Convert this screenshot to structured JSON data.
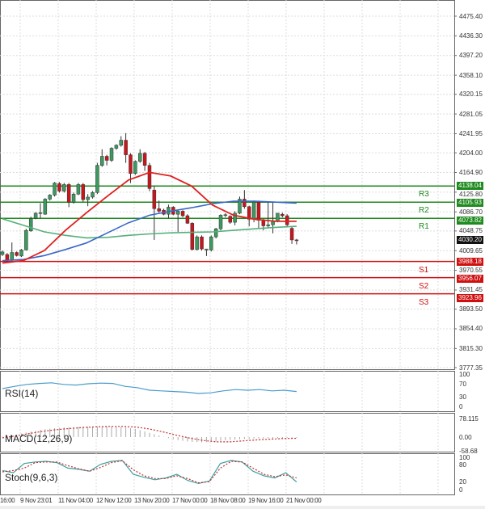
{
  "colors": {
    "bull": "#3c9a5f",
    "bear": "#c8161d",
    "resistance": "#1f8a1f",
    "support": "#d01010",
    "ma_fast": "#e02020",
    "ma_mid": "#3a68c8",
    "ma_slow": "#55b07a",
    "rsi": "#4a9ccc",
    "macd_hist": "#aaaaaa",
    "macd_signal": "#c03030",
    "stoch_main": "#3fa0a0",
    "stoch_signal": "#c03030",
    "current": "#111111"
  },
  "price_axis": {
    "range": [
      3777.35,
      4475.4
    ],
    "ticks": [
      "4475.40",
      "4436.30",
      "4397.20",
      "4358.10",
      "4320.15",
      "4281.05",
      "4241.95",
      "4204.00",
      "4164.90",
      "4125.80",
      "4086.70",
      "4048.75",
      "4009.65",
      "3970.55",
      "3931.45",
      "3893.50",
      "3854.40",
      "3815.30",
      "3777.35"
    ]
  },
  "current_price": "4030.20",
  "levels": [
    {
      "name": "R3",
      "value": "4138.04",
      "kind": "resistance"
    },
    {
      "name": "R2",
      "value": "4105.93",
      "kind": "resistance"
    },
    {
      "name": "R1",
      "value": "4073.82",
      "kind": "resistance"
    },
    {
      "name": "S1",
      "value": "3988.18",
      "kind": "support"
    },
    {
      "name": "S2",
      "value": "3956.07",
      "kind": "support"
    },
    {
      "name": "S3",
      "value": "3923.96",
      "kind": "support"
    }
  ],
  "time_labels": [
    "16:00",
    "9 Nov 23:01",
    "11 Nov 04:00",
    "12 Nov 12:00",
    "13 Nov 20:00",
    "17 Nov 00:00",
    "18 Nov 08:00",
    "19 Nov 16:00",
    "21 Nov 00:00"
  ],
  "candles": [
    [
      4002,
      4010,
      3999,
      4007
    ],
    [
      4002,
      4005,
      3988,
      3991
    ],
    [
      3991,
      4026,
      3988,
      4006
    ],
    [
      4006,
      4008,
      3998,
      4000
    ],
    [
      3999,
      4013,
      3997,
      4011
    ],
    [
      4011,
      4053,
      4010,
      4050
    ],
    [
      4049,
      4077,
      4047,
      4073
    ],
    [
      4074,
      4086,
      4072,
      4084
    ],
    [
      4084,
      4104,
      4074,
      4085
    ],
    [
      4082,
      4114,
      4081,
      4112
    ],
    [
      4112,
      4122,
      4109,
      4120
    ],
    [
      4120,
      4146,
      4117,
      4144
    ],
    [
      4143,
      4146,
      4125,
      4128
    ],
    [
      4128,
      4144,
      4125,
      4141
    ],
    [
      4141,
      4144,
      4096,
      4106
    ],
    [
      4106,
      4125,
      4103,
      4122
    ],
    [
      4122,
      4144,
      4120,
      4141
    ],
    [
      4141,
      4144,
      4107,
      4111
    ],
    [
      4111,
      4122,
      4098,
      4116
    ],
    [
      4116,
      4128,
      4113,
      4125
    ],
    [
      4125,
      4184,
      4122,
      4179
    ],
    [
      4179,
      4211,
      4176,
      4197
    ],
    [
      4197,
      4200,
      4179,
      4189
    ],
    [
      4189,
      4215,
      4186,
      4213
    ],
    [
      4213,
      4221,
      4210,
      4219
    ],
    [
      4219,
      4237,
      4216,
      4229
    ],
    [
      4229,
      4243,
      4184,
      4200
    ],
    [
      4200,
      4203,
      4144,
      4163
    ],
    [
      4163,
      4189,
      4160,
      4187
    ],
    [
      4187,
      4211,
      4184,
      4203
    ],
    [
      4203,
      4206,
      4168,
      4179
    ],
    [
      4179,
      4184,
      4128,
      4133
    ],
    [
      4130,
      4138,
      4031,
      4093
    ],
    [
      4093,
      4109,
      4085,
      4088
    ],
    [
      4090,
      4093,
      4080,
      4082
    ],
    [
      4082,
      4101,
      4074,
      4096
    ],
    [
      4096,
      4098,
      4080,
      4082
    ],
    [
      4082,
      4090,
      4047,
      4088
    ],
    [
      4088,
      4090,
      4076,
      4079
    ],
    [
      4079,
      4082,
      4063,
      4064
    ],
    [
      4064,
      4066,
      4010,
      4012
    ],
    [
      4012,
      4040,
      4010,
      4037
    ],
    [
      4037,
      4040,
      4010,
      4013
    ],
    [
      4011,
      4013,
      3999,
      4013
    ],
    [
      4011,
      4040,
      4008,
      4037
    ],
    [
      4037,
      4055,
      4034,
      4053
    ],
    [
      4053,
      4082,
      4050,
      4080
    ],
    [
      4080,
      4084,
      4076,
      4081
    ],
    [
      4078,
      4080,
      4063,
      4066
    ],
    [
      4066,
      4088,
      4060,
      4084
    ],
    [
      4084,
      4117,
      4082,
      4112
    ],
    [
      4112,
      4130,
      4093,
      4097
    ],
    [
      4097,
      4099,
      4058,
      4072
    ],
    [
      4072,
      4109,
      4066,
      4106
    ],
    [
      4106,
      4109,
      4055,
      4070
    ],
    [
      4070,
      4073,
      4050,
      4059
    ],
    [
      4059,
      4106,
      4055,
      4061
    ],
    [
      4061,
      4106,
      4044,
      4069
    ],
    [
      4069,
      4084,
      4066,
      4084
    ],
    [
      4082,
      4085,
      4076,
      4079
    ],
    [
      4079,
      4082,
      4058,
      4061
    ],
    [
      4054,
      4058,
      4023,
      4031
    ],
    [
      4031,
      4033,
      4022,
      4030
    ]
  ],
  "moving_averages": {
    "fast": [
      3985,
      3990,
      4010,
      4050,
      4085,
      4118,
      4150,
      4165,
      4158,
      4138,
      4100,
      4080,
      4072,
      4068,
      4068
    ],
    "mid": [
      3990,
      3992,
      4000,
      4012,
      4025,
      4045,
      4065,
      4080,
      4088,
      4095,
      4103,
      4108,
      4108,
      4106,
      4104
    ],
    "slow": [
      4073,
      4060,
      4047,
      4040,
      4035,
      4036,
      4040,
      4043,
      4045,
      4046,
      4047,
      4050,
      4053,
      4056,
      4058
    ]
  },
  "rsi": {
    "label": "RSI(14)",
    "ticks": [
      "100",
      "70",
      "30",
      "0"
    ],
    "values": [
      55,
      62,
      68,
      71,
      73,
      68,
      66,
      70,
      72,
      71,
      62,
      58,
      50,
      48,
      46,
      44,
      40,
      42,
      48,
      52,
      50,
      52,
      48,
      50,
      46
    ]
  },
  "macd": {
    "label": "MACD(12,26,9)",
    "ticks": [
      "78.115",
      "0.00",
      "-58.68"
    ],
    "main": [
      2,
      10,
      22,
      32,
      38,
      42,
      44,
      45,
      45,
      42,
      34,
      18,
      2,
      -12,
      -20,
      -22,
      -18,
      -12,
      -8,
      -6,
      -5,
      -4,
      -3
    ],
    "signal": [
      -3,
      5,
      15,
      24,
      31,
      36,
      40,
      43,
      45,
      45,
      42,
      34,
      22,
      8,
      -4,
      -14,
      -20,
      -20,
      -16,
      -12,
      -9,
      -6,
      -5
    ]
  },
  "stoch": {
    "label": "Stoch(9,6,3)",
    "ticks": [
      "100",
      "80",
      "20",
      "0"
    ],
    "main": [
      62,
      55,
      85,
      90,
      92,
      88,
      70,
      66,
      60,
      82,
      92,
      95,
      50,
      40,
      32,
      38,
      50,
      30,
      20,
      28,
      85,
      95,
      90,
      60,
      45,
      38,
      55,
      25
    ],
    "signal": [
      58,
      62,
      70,
      88,
      90,
      90,
      78,
      68,
      60,
      72,
      88,
      94,
      65,
      45,
      36,
      36,
      45,
      36,
      22,
      26,
      70,
      92,
      90,
      70,
      50,
      42,
      48,
      38
    ]
  }
}
